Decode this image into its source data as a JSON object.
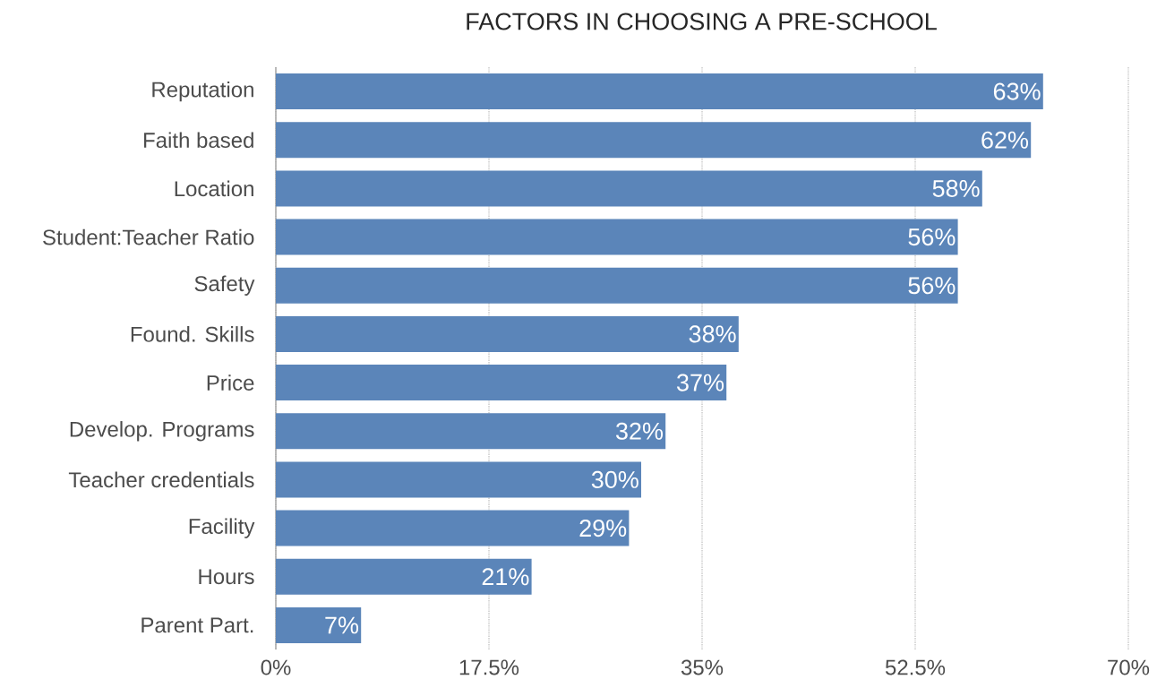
{
  "chart_data": {
    "type": "bar",
    "orientation": "horizontal",
    "title": "FACTORS IN CHOOSING A PRE-SCHOOL",
    "categories": [
      "Reputation",
      "Faith based",
      "Location",
      "Student:Teacher Ratio",
      "Safety",
      "Found. Skills",
      "Price",
      "Develop. Programs",
      "Teacher credentials",
      "Facility",
      "Hours",
      "Parent Part."
    ],
    "values": [
      63,
      62,
      58,
      56,
      56,
      38,
      37,
      32,
      30,
      29,
      21,
      7
    ],
    "value_labels": [
      "63%",
      "62%",
      "58%",
      "56%",
      "56%",
      "38%",
      "37%",
      "32%",
      "30%",
      "29%",
      "21%",
      "7%"
    ],
    "color": "#5b85b9",
    "xlim": [
      0,
      70
    ],
    "xticks": [
      {
        "value": 0,
        "label": "0%"
      },
      {
        "value": 17.5,
        "label": "17.5%"
      },
      {
        "value": 35,
        "label": "35%"
      },
      {
        "value": 52.5,
        "label": "52.5%"
      },
      {
        "value": 70,
        "label": "70%"
      }
    ],
    "grid": "x"
  }
}
